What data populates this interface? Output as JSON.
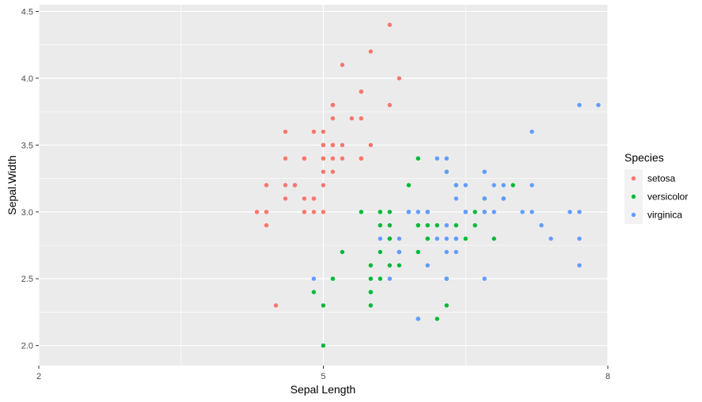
{
  "chart_data": {
    "type": "scatter",
    "xlabel": "Sepal Length",
    "ylabel": "Sepal.Width",
    "xlim": [
      2,
      8
    ],
    "ylim": [
      1.85,
      4.55
    ],
    "x_ticks": [
      2,
      5,
      8
    ],
    "x_tick_labels": [
      "2",
      "5",
      "8"
    ],
    "y_ticks": [
      2.0,
      2.5,
      3.0,
      3.5,
      4.0,
      4.5
    ],
    "y_tick_labels": [
      "2.0",
      "2.5",
      "3.0",
      "3.5",
      "4.0",
      "4.5"
    ],
    "grid": true,
    "legend": {
      "title": "Species",
      "position": "right"
    },
    "series": [
      {
        "name": "setosa",
        "color": "#F8766D",
        "x": [
          5.1,
          4.9,
          4.7,
          4.6,
          5.0,
          5.4,
          4.6,
          5.0,
          4.4,
          4.9,
          5.4,
          4.8,
          4.8,
          4.3,
          5.8,
          5.7,
          5.4,
          5.1,
          5.7,
          5.1,
          5.4,
          5.1,
          4.6,
          5.1,
          4.8,
          5.0,
          5.0,
          5.2,
          5.2,
          4.7,
          4.8,
          5.4,
          5.2,
          5.5,
          4.9,
          5.0,
          5.5,
          4.9,
          4.4,
          5.1,
          5.0,
          4.5,
          4.4,
          5.0,
          5.1,
          4.8,
          5.1,
          4.6,
          5.3,
          5.0
        ],
        "y": [
          3.5,
          3.0,
          3.2,
          3.1,
          3.6,
          3.9,
          3.4,
          3.4,
          2.9,
          3.1,
          3.7,
          3.4,
          3.0,
          3.0,
          4.0,
          4.4,
          3.9,
          3.5,
          3.8,
          3.8,
          3.4,
          3.7,
          3.6,
          3.3,
          3.4,
          3.0,
          3.4,
          3.5,
          3.4,
          3.2,
          3.1,
          3.4,
          4.1,
          4.2,
          3.1,
          3.2,
          3.5,
          3.6,
          3.0,
          3.4,
          3.5,
          2.3,
          3.2,
          3.5,
          3.8,
          3.0,
          3.8,
          3.2,
          3.7,
          3.3
        ]
      },
      {
        "name": "versicolor",
        "color": "#00BA38",
        "x": [
          7.0,
          6.4,
          6.9,
          5.5,
          6.5,
          5.7,
          6.3,
          4.9,
          6.6,
          5.2,
          5.0,
          5.9,
          6.0,
          6.1,
          5.6,
          6.7,
          5.6,
          5.8,
          6.2,
          5.6,
          5.9,
          6.1,
          6.3,
          6.1,
          6.4,
          6.6,
          6.8,
          6.7,
          6.0,
          5.7,
          5.5,
          5.5,
          5.8,
          6.0,
          5.4,
          6.0,
          6.7,
          6.3,
          5.6,
          5.5,
          5.5,
          6.1,
          5.8,
          5.0,
          5.6,
          5.7,
          5.7,
          6.2,
          5.1,
          5.7
        ],
        "y": [
          3.2,
          3.2,
          3.1,
          2.3,
          2.8,
          2.8,
          3.3,
          2.4,
          2.9,
          2.7,
          2.0,
          3.0,
          2.2,
          2.9,
          2.9,
          3.1,
          3.0,
          2.7,
          2.2,
          2.5,
          3.2,
          2.8,
          2.5,
          2.8,
          2.9,
          3.0,
          2.8,
          3.0,
          2.9,
          2.6,
          2.4,
          2.4,
          2.7,
          2.7,
          3.0,
          3.4,
          3.1,
          2.3,
          3.0,
          2.5,
          2.6,
          3.0,
          2.6,
          2.3,
          2.7,
          3.0,
          2.9,
          2.9,
          2.5,
          2.8
        ]
      },
      {
        "name": "virginica",
        "color": "#619CFF",
        "x": [
          6.3,
          5.8,
          7.1,
          6.3,
          6.5,
          7.6,
          4.9,
          7.3,
          6.7,
          7.2,
          6.5,
          6.4,
          6.8,
          5.7,
          5.8,
          6.4,
          6.5,
          7.7,
          7.7,
          6.0,
          6.9,
          5.6,
          7.7,
          6.3,
          6.7,
          7.2,
          6.2,
          6.1,
          6.4,
          7.2,
          7.4,
          7.9,
          6.4,
          6.3,
          6.1,
          7.7,
          6.3,
          6.4,
          6.0,
          6.9,
          6.7,
          6.9,
          5.8,
          6.8,
          6.7,
          6.7,
          6.3,
          6.5,
          6.2,
          5.9
        ],
        "y": [
          3.3,
          2.7,
          3.0,
          2.9,
          3.0,
          3.0,
          2.5,
          2.9,
          2.5,
          3.6,
          3.2,
          2.7,
          3.0,
          2.5,
          2.8,
          3.2,
          3.0,
          3.8,
          2.6,
          2.2,
          3.2,
          2.8,
          2.8,
          2.7,
          3.3,
          3.2,
          2.8,
          3.0,
          2.8,
          3.0,
          2.8,
          3.8,
          2.8,
          2.8,
          2.6,
          3.0,
          3.4,
          3.1,
          3.0,
          3.1,
          3.1,
          3.1,
          2.7,
          3.2,
          3.3,
          3.0,
          2.5,
          3.0,
          3.4,
          3.0
        ]
      }
    ]
  }
}
